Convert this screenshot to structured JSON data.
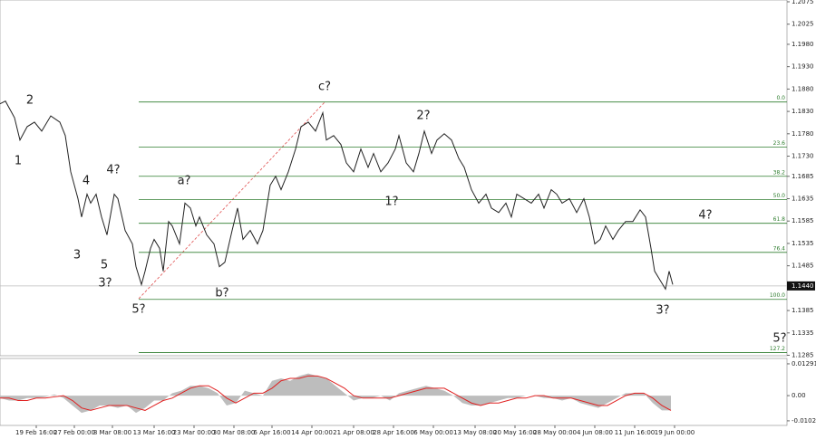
{
  "chart_data": [
    {
      "type": "line",
      "color": "#222222",
      "xlim": [
        0,
        434
      ],
      "ylim": [
        1.1284,
        1.2079
      ],
      "x": [
        0,
        3,
        8,
        11,
        15,
        19,
        23,
        28,
        33,
        36,
        39,
        43,
        45,
        48,
        50,
        53,
        56,
        59,
        63,
        65,
        69,
        73,
        75,
        78,
        80,
        83,
        85,
        88,
        90,
        93,
        95,
        99,
        102,
        105,
        108,
        110,
        114,
        118,
        121,
        124,
        128,
        131,
        134,
        138,
        142,
        145,
        149,
        152,
        155,
        159,
        163,
        166,
        170,
        174,
        178,
        180,
        184,
        188,
        191,
        195,
        199,
        203,
        206,
        210,
        214,
        218,
        220,
        224,
        228,
        231,
        234,
        238,
        241,
        245,
        249,
        253,
        256,
        260,
        264,
        268,
        271,
        275,
        279,
        282,
        285,
        289,
        293,
        297,
        300,
        304,
        307,
        310,
        314,
        318,
        322,
        325,
        328,
        331,
        334,
        338,
        341,
        345,
        349,
        353,
        356,
        359,
        361,
        364,
        367,
        369,
        371
      ],
      "series": [
        {
          "values": [
            1.1847,
            1.1853,
            1.1816,
            1.1766,
            1.1796,
            1.1806,
            1.1786,
            1.182,
            1.1806,
            1.1776,
            1.1695,
            1.1635,
            1.1594,
            1.1645,
            1.1625,
            1.1645,
            1.1594,
            1.1554,
            1.1645,
            1.1635,
            1.1564,
            1.1534,
            1.1483,
            1.1443,
            1.1473,
            1.1524,
            1.1544,
            1.1524,
            1.1473,
            1.1584,
            1.1574,
            1.1534,
            1.1625,
            1.1614,
            1.1574,
            1.1594,
            1.1554,
            1.1534,
            1.1483,
            1.1493,
            1.1564,
            1.1614,
            1.1544,
            1.1564,
            1.1534,
            1.1564,
            1.1665,
            1.1685,
            1.1655,
            1.1695,
            1.1746,
            1.1796,
            1.1806,
            1.1786,
            1.1827,
            1.1766,
            1.1776,
            1.1756,
            1.1715,
            1.1695,
            1.1746,
            1.1705,
            1.1736,
            1.1695,
            1.1715,
            1.1746,
            1.1776,
            1.1715,
            1.1695,
            1.1736,
            1.1786,
            1.1736,
            1.1766,
            1.178,
            1.1766,
            1.1725,
            1.1705,
            1.1655,
            1.1625,
            1.1645,
            1.1614,
            1.1604,
            1.1625,
            1.1594,
            1.1645,
            1.1635,
            1.1625,
            1.1645,
            1.1614,
            1.1655,
            1.1645,
            1.1625,
            1.1635,
            1.1604,
            1.1635,
            1.1594,
            1.1534,
            1.1544,
            1.1574,
            1.1544,
            1.1564,
            1.1584,
            1.1584,
            1.161,
            1.1594,
            1.1524,
            1.1473,
            1.1453,
            1.1433,
            1.1473,
            1.1443
          ]
        }
      ],
      "yticks": [
        1.2075,
        1.2025,
        {
          "value": 1.198,
          "label": "1.1980"
        },
        {
          "value": 1.193,
          "label": "1.1930"
        },
        {
          "value": 1.188,
          "label": "1.1880"
        },
        {
          "value": 1.183,
          "label": "1.1830"
        },
        {
          "value": 1.178,
          "label": "1.1780"
        },
        {
          "value": 1.173,
          "label": "1.1730"
        },
        1.1685,
        1.1635,
        1.1585,
        1.1535,
        1.1485,
        1.1385,
        1.1335,
        1.1285
      ],
      "xticks": [
        {
          "value": 20,
          "label": "19 Feb 16:00"
        },
        {
          "value": 41,
          "label": "27 Feb 00:00"
        },
        {
          "value": 62,
          "label": "8 Mar 08:00"
        },
        {
          "value": 85,
          "label": "13 Mar 16:00"
        },
        {
          "value": 107,
          "label": "23 Mar 00:00"
        },
        {
          "value": 129,
          "label": "30 Mar 08:00"
        },
        {
          "value": 150,
          "label": "6 Apr 16:00"
        },
        {
          "value": 172,
          "label": "14 Apr 00:00"
        },
        {
          "value": 195,
          "label": "21 Apr 08:00"
        },
        {
          "value": 217,
          "label": "28 Apr 16:00"
        },
        {
          "value": 239,
          "label": "6 May 00:00"
        },
        {
          "value": 262,
          "label": "13 May 08:00"
        },
        {
          "value": 284,
          "label": "20 May 16:00"
        },
        {
          "value": 306,
          "label": "28 May 00:00"
        },
        {
          "value": 328,
          "label": "4 Jun 08:00"
        },
        {
          "value": 350,
          "label": "11 Jun 16:00"
        },
        {
          "value": 372,
          "label": "19 Jun 00:00"
        }
      ],
      "current_price": {
        "value": 1.144,
        "label": "1.1440"
      },
      "fib_color": "#2e7d2e",
      "fib_levels": [
        {
          "label": "0.0",
          "price": 1.1851
        },
        {
          "label": "23.6",
          "price": 1.175
        },
        {
          "label": "38.2",
          "price": 1.1685
        },
        {
          "label": "50.0",
          "price": 1.1633
        },
        {
          "label": "61.8",
          "price": 1.158
        },
        {
          "label": "76.4",
          "price": 1.1515
        },
        {
          "label": "100.0",
          "price": 1.141
        },
        {
          "label": "127.2",
          "price": 1.1291
        }
      ],
      "wave_labels": [
        {
          "text": "1",
          "color": "#2233cc"
        },
        {
          "text": "2",
          "color": "#2233cc"
        },
        {
          "text": "3",
          "color": "#2233cc"
        },
        {
          "text": "4",
          "color": "#2233cc"
        },
        {
          "text": "5",
          "color": "#2233cc"
        },
        {
          "text": "4?",
          "color": "#dd1111"
        },
        {
          "text": "3?",
          "color": "#dd1111"
        },
        {
          "text": "5?",
          "color": "#dd1111"
        },
        {
          "text": "a?",
          "color": "#dd1111"
        },
        {
          "text": "b?",
          "color": "#dd1111"
        },
        {
          "text": "c?",
          "color": "#dd1111"
        },
        {
          "text": "1?",
          "color": "#dd1111"
        },
        {
          "text": "2?",
          "color": "#dd1111"
        },
        {
          "text": "3?",
          "color": "#dd1111"
        },
        {
          "text": "4?",
          "color": "#dd1111"
        },
        {
          "text": "5?",
          "color": "#dd1111"
        }
      ]
    },
    {
      "type": "area",
      "xlim": [
        0,
        434
      ],
      "ylim": [
        -0.0121,
        0.0151
      ],
      "x": [
        0,
        5,
        10,
        15,
        20,
        25,
        30,
        35,
        40,
        45,
        50,
        55,
        60,
        65,
        70,
        75,
        80,
        85,
        90,
        95,
        100,
        105,
        110,
        115,
        120,
        125,
        130,
        135,
        140,
        145,
        150,
        155,
        160,
        165,
        170,
        175,
        180,
        185,
        190,
        195,
        200,
        205,
        210,
        215,
        220,
        225,
        230,
        235,
        240,
        245,
        250,
        255,
        260,
        265,
        270,
        275,
        280,
        285,
        290,
        295,
        300,
        305,
        310,
        315,
        320,
        325,
        330,
        335,
        340,
        345,
        350,
        355,
        360,
        365,
        370
      ],
      "yticks": [
        0.01291,
        {
          "value": 0,
          "label": "0.00"
        },
        -0.01023
      ],
      "series": [
        {
          "color": "#bdbdbd",
          "values": [
            -0.001,
            -0.002,
            -0.002,
            -0.001,
            -0.001,
            -0.0005,
            0.0005,
            -0.001,
            -0.004,
            -0.007,
            -0.006,
            -0.004,
            -0.004,
            -0.005,
            -0.004,
            -0.007,
            -0.005,
            -0.002,
            -0.002,
            0.001,
            0.002,
            0.004,
            0.004,
            0.003,
            0.001,
            -0.004,
            -0.003,
            0.002,
            0.001,
            0,
            0.006,
            0.007,
            0.006,
            0.008,
            0.009,
            0.008,
            0.007,
            0.004,
            0.001,
            -0.002,
            -0.001,
            -0.001,
            0,
            -0.002,
            0.001,
            0.002,
            0.003,
            0.004,
            0.003,
            0.002,
            0,
            -0.003,
            -0.004,
            -0.004,
            -0.003,
            -0.002,
            -0.001,
            -0.001,
            0,
            0,
            -0.001,
            -0.001,
            -0.002,
            -0.001,
            -0.003,
            -0.004,
            -0.005,
            -0.003,
            -0.001,
            0.001,
            0.001,
            0.001,
            -0.003,
            -0.006,
            -0.006
          ]
        },
        {
          "color": "#e02020",
          "values": [
            -0.001,
            -0.001,
            -0.002,
            -0.002,
            -0.001,
            -0.001,
            -0.0005,
            0,
            -0.002,
            -0.005,
            -0.006,
            -0.005,
            -0.004,
            -0.004,
            -0.004,
            -0.005,
            -0.006,
            -0.004,
            -0.002,
            -0.001,
            0.001,
            0.003,
            0.004,
            0.004,
            0.002,
            -0.001,
            -0.003,
            -0.001,
            0.001,
            0.001,
            0.003,
            0.006,
            0.007,
            0.007,
            0.008,
            0.008,
            0.007,
            0.005,
            0.003,
            0,
            -0.001,
            -0.001,
            -0.001,
            -0.001,
            0,
            0.001,
            0.002,
            0.003,
            0.003,
            0.003,
            0.001,
            -0.001,
            -0.003,
            -0.004,
            -0.003,
            -0.003,
            -0.002,
            -0.001,
            -0.001,
            0,
            0,
            -0.001,
            -0.001,
            -0.001,
            -0.002,
            -0.003,
            -0.004,
            -0.004,
            -0.002,
            0,
            0.001,
            0.001,
            -0.001,
            -0.004,
            -0.006
          ]
        }
      ]
    }
  ]
}
